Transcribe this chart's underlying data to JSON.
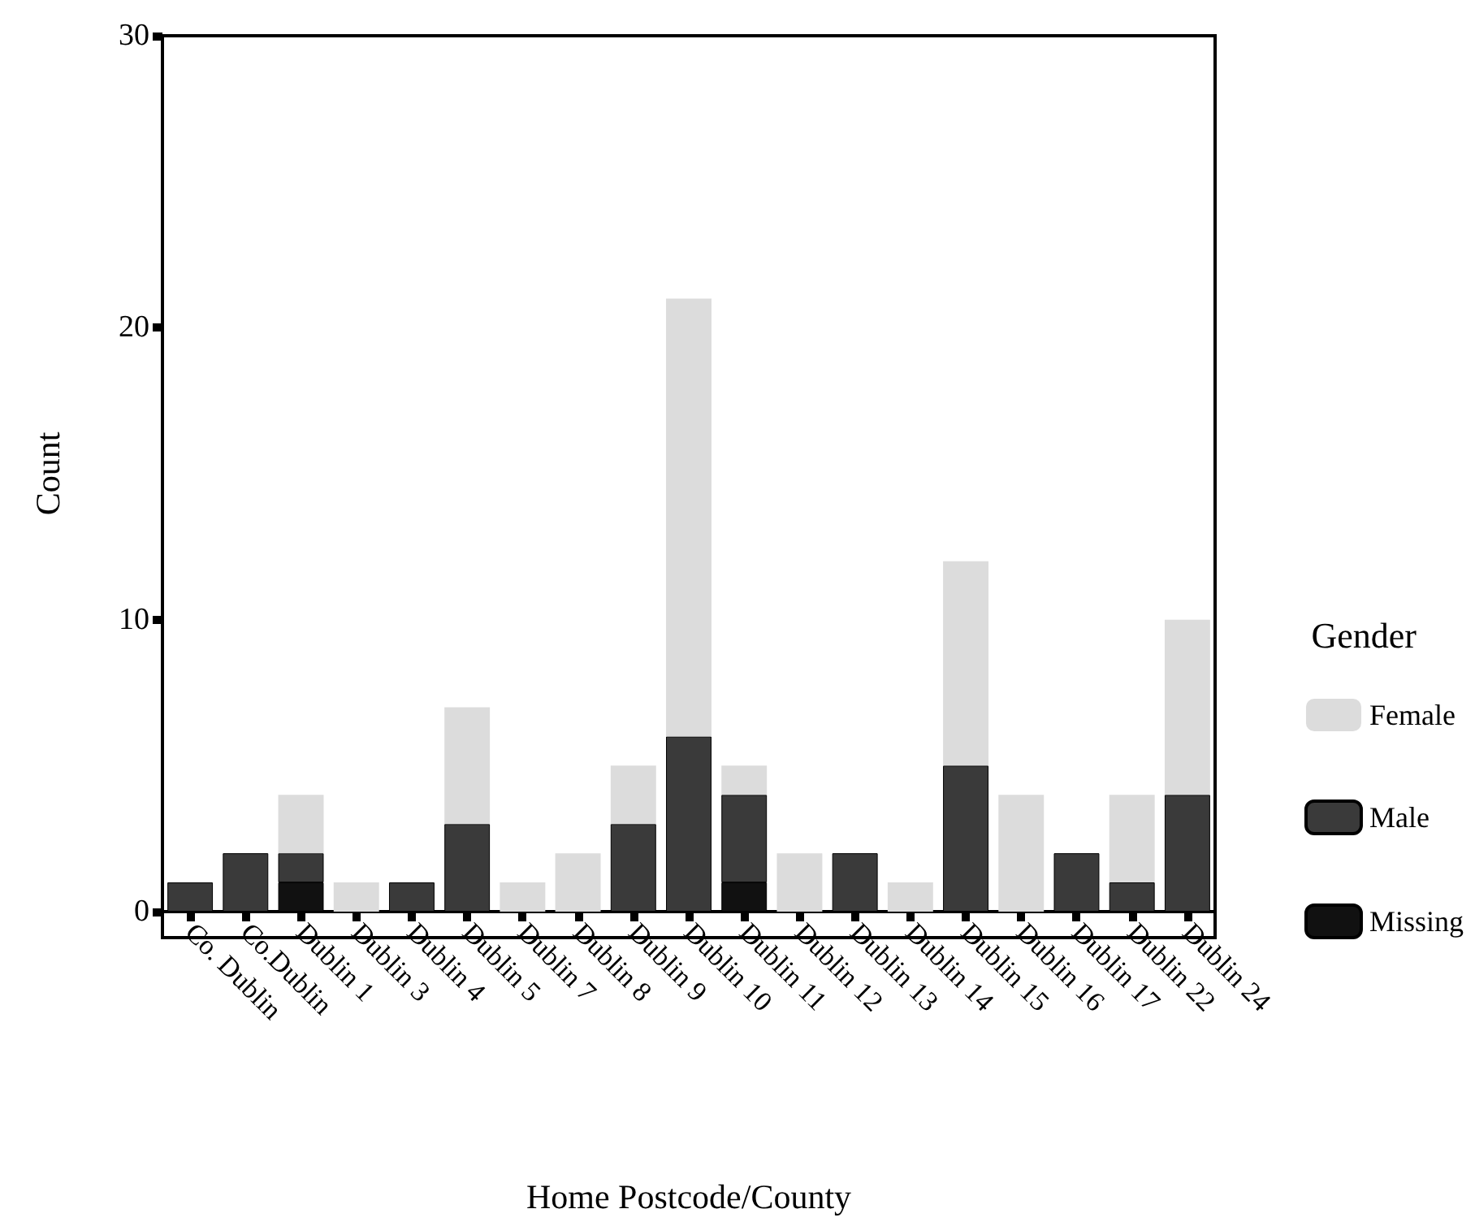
{
  "chart_data": {
    "type": "bar",
    "stacked": true,
    "xlabel": "Home Postcode/County",
    "ylabel": "Count",
    "legend_title": "Gender",
    "legend": "right",
    "grid": false,
    "categories": [
      "Co. Dublin",
      "Co.Dublin",
      "Dublin 1",
      "Dublin 3",
      "Dublin 4",
      "Dublin 5",
      "Dublin 7",
      "Dublin 8",
      "Dublin 9",
      "Dublin 10",
      "Dublin 11",
      "Dublin 12",
      "Dublin 13",
      "Dublin 14",
      "Dublin 15",
      "Dublin 16",
      "Dublin 17",
      "Dublin 22",
      "Dublin 24"
    ],
    "series": [
      {
        "name": "Missing",
        "color": "#111111",
        "values": [
          0,
          0,
          1,
          0,
          0,
          0,
          0,
          0,
          0,
          0,
          1,
          0,
          0,
          0,
          0,
          0,
          0,
          0,
          0
        ]
      },
      {
        "name": "Male",
        "color": "#3a3a3a",
        "values": [
          1,
          2,
          1,
          0,
          1,
          3,
          0,
          0,
          3,
          6,
          3,
          0,
          2,
          0,
          5,
          0,
          2,
          1,
          4
        ]
      },
      {
        "name": "Female",
        "color": "#dcdcdc",
        "values": [
          0,
          0,
          2,
          1,
          0,
          4,
          1,
          2,
          2,
          15,
          1,
          2,
          0,
          1,
          7,
          4,
          0,
          3,
          6
        ]
      }
    ],
    "ylim": [
      0,
      30
    ],
    "yticks": [
      0,
      10,
      20,
      30
    ]
  }
}
